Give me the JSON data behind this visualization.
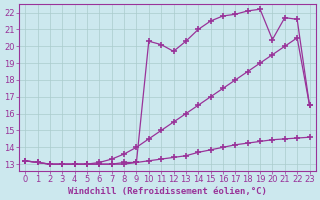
{
  "background_color": "#cce8ee",
  "grid_color": "#aacccc",
  "line_color": "#993399",
  "marker": "+",
  "markersize": 4,
  "markeredgewidth": 1.2,
  "xlabel": "Windchill (Refroidissement éolien,°C)",
  "ylabel_ticks": [
    13,
    14,
    15,
    16,
    17,
    18,
    19,
    20,
    21,
    22
  ],
  "xlabel_ticks": [
    0,
    1,
    2,
    3,
    4,
    5,
    6,
    7,
    8,
    9,
    10,
    11,
    12,
    13,
    14,
    15,
    16,
    17,
    18,
    19,
    20,
    21,
    22,
    23
  ],
  "xlim": [
    -0.5,
    23.5
  ],
  "ylim": [
    12.6,
    22.5
  ],
  "curve1_x": [
    0,
    1,
    2,
    3,
    4,
    5,
    6,
    7,
    8,
    9,
    10,
    11,
    12,
    13,
    14,
    15,
    16,
    17,
    18,
    19,
    20,
    21,
    22,
    23
  ],
  "curve1_y": [
    13.2,
    13.1,
    13.0,
    13.0,
    13.0,
    13.0,
    13.0,
    13.0,
    13.1,
    13.1,
    13.2,
    13.3,
    13.4,
    13.5,
    13.7,
    13.85,
    14.0,
    14.15,
    14.25,
    14.35,
    14.45,
    14.5,
    14.55,
    14.6
  ],
  "curve2_x": [
    0,
    1,
    2,
    3,
    4,
    5,
    6,
    7,
    8,
    9,
    10,
    11,
    12,
    13,
    14,
    15,
    16,
    17,
    18,
    19,
    20,
    21,
    22,
    23
  ],
  "curve2_y": [
    13.2,
    13.1,
    13.0,
    13.0,
    13.0,
    13.0,
    13.1,
    13.3,
    13.6,
    14.0,
    14.5,
    15.0,
    15.5,
    16.0,
    16.5,
    17.0,
    17.5,
    18.0,
    18.5,
    19.0,
    19.5,
    20.0,
    20.5,
    16.5
  ],
  "curve3_x": [
    0,
    1,
    2,
    3,
    4,
    5,
    6,
    7,
    8,
    9,
    10,
    11,
    12,
    13,
    14,
    15,
    16,
    17,
    18,
    19,
    20,
    21,
    22,
    23
  ],
  "curve3_y": [
    13.2,
    13.1,
    13.0,
    13.0,
    13.0,
    13.0,
    13.0,
    13.0,
    13.0,
    13.1,
    20.3,
    20.1,
    19.7,
    20.3,
    21.0,
    21.5,
    21.8,
    21.9,
    22.1,
    22.2,
    20.4,
    21.7,
    21.6,
    16.5
  ],
  "tick_fontsize": 6,
  "label_fontsize": 6.5,
  "linewidth": 0.9
}
